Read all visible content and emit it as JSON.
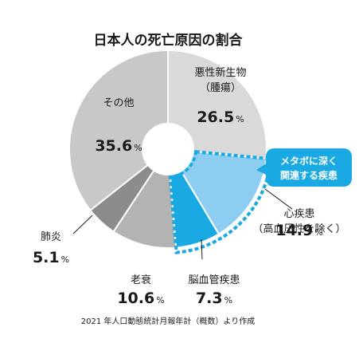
{
  "chart_data": {
    "type": "pie",
    "variant": "donut",
    "title": "日本人の死亡原因の割合",
    "source": "2021 年人口動態統計月報年計（概数）より作成",
    "unit": "%",
    "slices": [
      {
        "label_lines": [
          "悪性新生物",
          "（腫瘍）"
        ],
        "value": 26.5,
        "color": "#d9d9d9",
        "highlight": false
      },
      {
        "label_lines": [
          "心疾患",
          "（高血圧性を除く）"
        ],
        "value": 14.9,
        "color": "#8ccdf1",
        "highlight": true
      },
      {
        "label_lines": [
          "脳血管疾患"
        ],
        "value": 7.3,
        "color": "#1ba9e3",
        "highlight": true
      },
      {
        "label_lines": [
          "老衰"
        ],
        "value": 10.6,
        "color": "#b3b3b3",
        "highlight": false
      },
      {
        "label_lines": [
          "肺炎"
        ],
        "value": 5.1,
        "color": "#8c8c8c",
        "highlight": false
      },
      {
        "label_lines": [
          "その他"
        ],
        "value": 35.6,
        "color": "#c8c8c8",
        "highlight": false
      }
    ],
    "start_angle_deg": 0,
    "direction": "clockwise",
    "highlight_color": "#1ba9e3",
    "callout": {
      "lines": [
        "メタボに深く",
        "関連する疾患"
      ]
    }
  }
}
